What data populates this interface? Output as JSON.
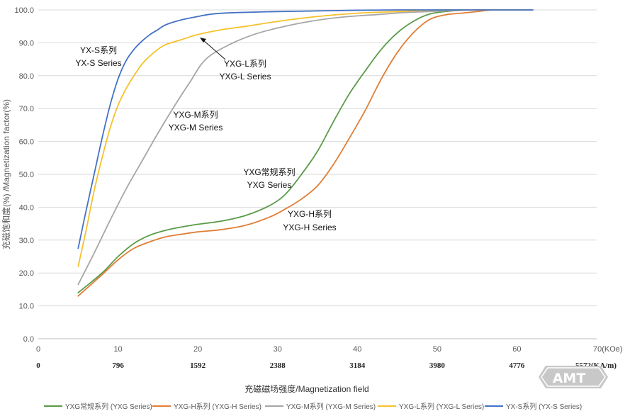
{
  "chart_data": {
    "type": "line",
    "ylabel": "充磁饱和度(%) /Magnetization factor(%)",
    "xlabel": "充磁磁场强度/Magnetization field",
    "xlim": [
      0,
      70
    ],
    "ylim": [
      0,
      100
    ],
    "x_ticks": [
      "0",
      "10",
      "20",
      "30",
      "40",
      "50",
      "60",
      "70(KOe)"
    ],
    "x_ticks_secondary": [
      "0",
      "796",
      "1592",
      "2388",
      "3184",
      "3980",
      "4776",
      "5572(KA/m)"
    ],
    "y_ticks": [
      "0.0",
      "10.0",
      "20.0",
      "30.0",
      "40.0",
      "50.0",
      "60.0",
      "70.0",
      "80.0",
      "90.0",
      "100.0"
    ],
    "grid": "horizontal",
    "legend_position": "bottom",
    "series": [
      {
        "name": "YXG常规系列 (YXG Series)",
        "color": "#5a9a47",
        "x": [
          5,
          8,
          10,
          12,
          14,
          16,
          18,
          20,
          23,
          26,
          29,
          31,
          33,
          35,
          37,
          39,
          41,
          43,
          45,
          47,
          49,
          51,
          54,
          57,
          60,
          62
        ],
        "y": [
          14,
          20,
          25,
          29,
          31.5,
          33,
          34,
          34.8,
          35.8,
          37.5,
          40.5,
          44,
          50,
          57,
          66,
          74.5,
          81.5,
          88,
          93,
          96.5,
          98.7,
          99.5,
          100,
          100,
          100,
          100
        ]
      },
      {
        "name": "YXG-H系列  (YXG-H Series)",
        "color": "#e07e36",
        "x": [
          5,
          8,
          10,
          12,
          14,
          16,
          18,
          20,
          23,
          26,
          29,
          31,
          33,
          35,
          37,
          39,
          41,
          43,
          45,
          47,
          49,
          51,
          53,
          55,
          57,
          60,
          62
        ],
        "y": [
          13,
          19.5,
          24,
          27.5,
          29.5,
          31,
          31.8,
          32.5,
          33.2,
          34.5,
          37,
          39.5,
          42.5,
          46.5,
          53,
          61,
          69.5,
          79,
          87,
          93,
          97,
          98.5,
          99,
          99.5,
          100,
          100,
          100
        ]
      },
      {
        "name": "YXG-M系列  (YXG-M Series)",
        "color": "#a6a6a6",
        "x": [
          5,
          7,
          9,
          11,
          13,
          15,
          17,
          19,
          21,
          24,
          27,
          30,
          34,
          38,
          42,
          46,
          50,
          55,
          60,
          62
        ],
        "y": [
          16.5,
          26,
          36,
          45.5,
          54,
          62.5,
          70.5,
          78,
          85,
          89.5,
          92.5,
          94.5,
          96.5,
          97.8,
          98.5,
          99.2,
          99.6,
          100,
          100,
          100
        ]
      },
      {
        "name": "YXG-L系列 (YXG-L Series)",
        "color": "#f5c12b",
        "x": [
          5,
          6,
          7,
          8,
          9,
          10,
          11,
          12,
          13,
          14,
          15,
          16,
          18,
          20,
          23,
          26,
          30,
          35,
          40,
          45,
          50,
          55,
          60,
          62
        ],
        "y": [
          22,
          33,
          45,
          55,
          64,
          71,
          76,
          80,
          83.5,
          86,
          88,
          89.5,
          91,
          92.5,
          94,
          95,
          96.5,
          98,
          99,
          99.5,
          100,
          100,
          100,
          100
        ]
      },
      {
        "name": "YX-S系列   (YX-S Series)",
        "color": "#4472c4",
        "x": [
          5,
          6,
          7,
          8,
          9,
          10,
          11,
          12,
          13,
          14,
          15,
          16,
          18,
          20,
          22,
          25,
          30,
          35,
          40,
          45,
          50,
          55,
          60,
          62
        ],
        "y": [
          27.5,
          39,
          50,
          61,
          71,
          79,
          84.5,
          88,
          90.5,
          92.5,
          94,
          95.5,
          97,
          98,
          98.8,
          99.2,
          99.5,
          99.7,
          99.9,
          100,
          100,
          100,
          100,
          100
        ]
      }
    ],
    "annotations": [
      {
        "line1": "YX-S系列",
        "line2": "YX-S Series"
      },
      {
        "line1": "YXG-L系列",
        "line2": "YXG-L Series"
      },
      {
        "line1": "YXG-M系列",
        "line2": "YXG-M Series"
      },
      {
        "line1": "YXG常规系列",
        "line2": "YXG Series"
      },
      {
        "line1": "YXG-H系列",
        "line2": "YXG-H Series"
      }
    ]
  },
  "logo": {
    "text": "AMT",
    "fill": "#c8c8c8"
  }
}
